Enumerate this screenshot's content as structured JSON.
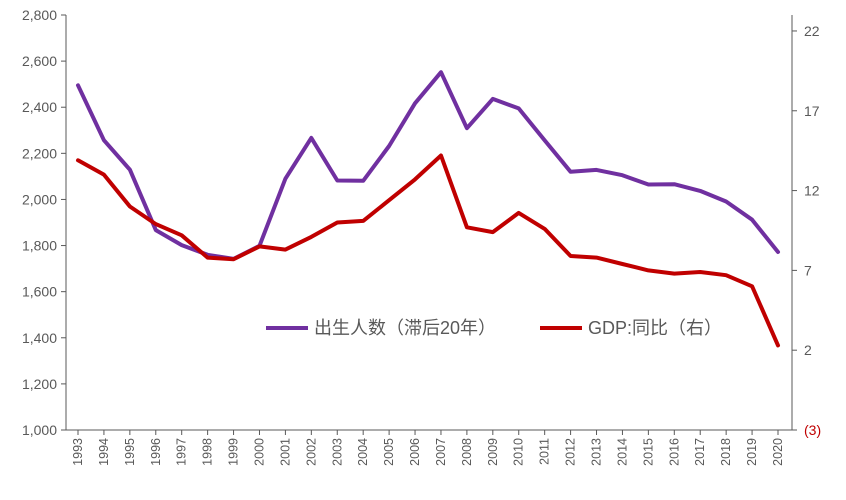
{
  "chart_data": {
    "type": "line",
    "title": "",
    "xlabel": "",
    "ylabel": "",
    "categories": [
      "1993",
      "1994",
      "1995",
      "1996",
      "1997",
      "1998",
      "1999",
      "2000",
      "2001",
      "2002",
      "2003",
      "2004",
      "2005",
      "2006",
      "2007",
      "2008",
      "2009",
      "2010",
      "2011",
      "2012",
      "2013",
      "2014",
      "2015",
      "2016",
      "2017",
      "2018",
      "2019",
      "2020"
    ],
    "left_axis": {
      "ylim": [
        1000,
        2800
      ],
      "ticks": [
        1000,
        1200,
        1400,
        1600,
        1800,
        2000,
        2200,
        2400,
        2600,
        2800
      ],
      "tick_labels": [
        "1,000",
        "1,200",
        "1,400",
        "1,600",
        "1,800",
        "2,000",
        "2,200",
        "2,400",
        "2,600",
        "2,800"
      ]
    },
    "right_axis": {
      "ylim": [
        -3,
        23
      ],
      "ticks": [
        -3,
        2,
        7,
        12,
        17,
        22
      ],
      "tick_labels": [
        "(3)",
        "2",
        "7",
        "12",
        "17",
        "22"
      ],
      "negative_label_color": "#c00000"
    },
    "series": [
      {
        "name": "出生人数（滞后20年）",
        "axis": "left",
        "color": "#7030a0",
        "values": [
          2495,
          2257,
          2129,
          1867,
          1802,
          1760,
          1742,
          1799,
          2090,
          2267,
          2082,
          2081,
          2232,
          2417,
          2552,
          2309,
          2436,
          2395,
          2256,
          2120,
          2128,
          2105,
          2065,
          2066,
          2037,
          1991,
          1912,
          1772
        ]
      },
      {
        "name": "GDP:同比（右）",
        "axis": "right",
        "color": "#c00000",
        "values": [
          13.9,
          13.0,
          11.0,
          9.9,
          9.2,
          7.8,
          7.7,
          8.5,
          8.3,
          9.1,
          10.0,
          10.1,
          11.4,
          12.7,
          14.2,
          9.7,
          9.4,
          10.6,
          9.6,
          7.9,
          7.8,
          7.4,
          7.0,
          6.8,
          6.9,
          6.7,
          6.0,
          2.3
        ]
      }
    ],
    "legend": {
      "placement": "center-right",
      "entries": [
        "出生人数（滞后20年）",
        "GDP:同比（右）"
      ]
    },
    "colors": {
      "axis": "#595959",
      "background": "#ffffff"
    }
  }
}
